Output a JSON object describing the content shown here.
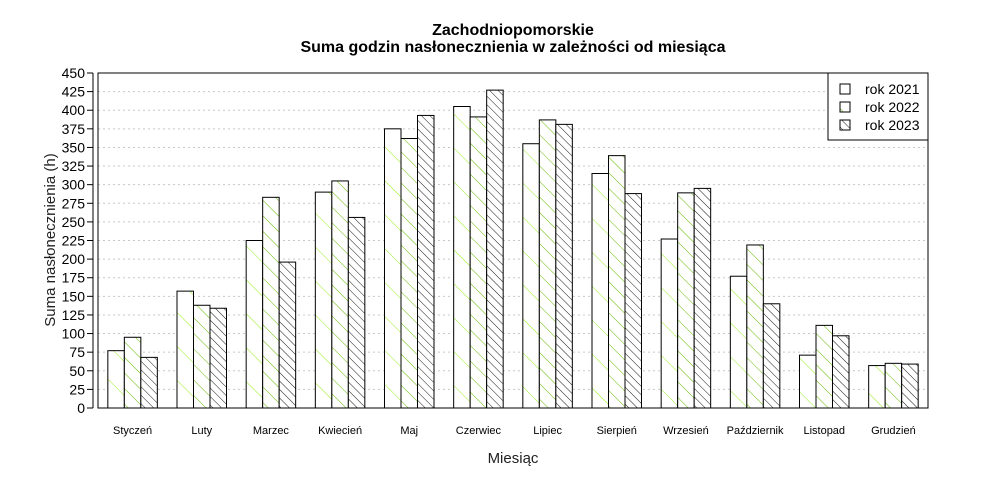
{
  "chart_data": {
    "type": "bar",
    "title": "Zachodniopomorskie",
    "subtitle": "Suma godzin nasłonecznienia w zależności od miesiąca",
    "xlabel": "Miesiąc",
    "ylabel": "Suma nasłonecznienia (h)",
    "ylim": [
      0,
      450
    ],
    "yticks": [
      0,
      25,
      50,
      75,
      100,
      125,
      150,
      175,
      200,
      225,
      250,
      275,
      300,
      325,
      350,
      375,
      400,
      425,
      450
    ],
    "grid": "horizontal dotted",
    "legend_position": "top-right",
    "categories": [
      "Styczeń",
      "Luty",
      "Marzec",
      "Kwiecień",
      "Maj",
      "Czerwiec",
      "Lipiec",
      "Sierpień",
      "Wrzesień",
      "Październik",
      "Listopad",
      "Grudzień"
    ],
    "series": [
      {
        "name": "rok 2021",
        "values": [
          77,
          157,
          225,
          290,
          375,
          405,
          355,
          315,
          227,
          177,
          71,
          57
        ],
        "hatch": "sparse-ascending",
        "hatch_color": "#99ee22"
      },
      {
        "name": "rok 2022",
        "values": [
          95,
          138,
          283,
          305,
          362,
          391,
          387,
          339,
          289,
          219,
          111,
          60
        ],
        "hatch": "ascending",
        "hatch_color": "#66bb00"
      },
      {
        "name": "rok 2023",
        "values": [
          68,
          134,
          196,
          256,
          393,
          427,
          381,
          288,
          295,
          140,
          97,
          59
        ],
        "hatch": "dense-ascending",
        "hatch_color": "#000000"
      }
    ]
  }
}
